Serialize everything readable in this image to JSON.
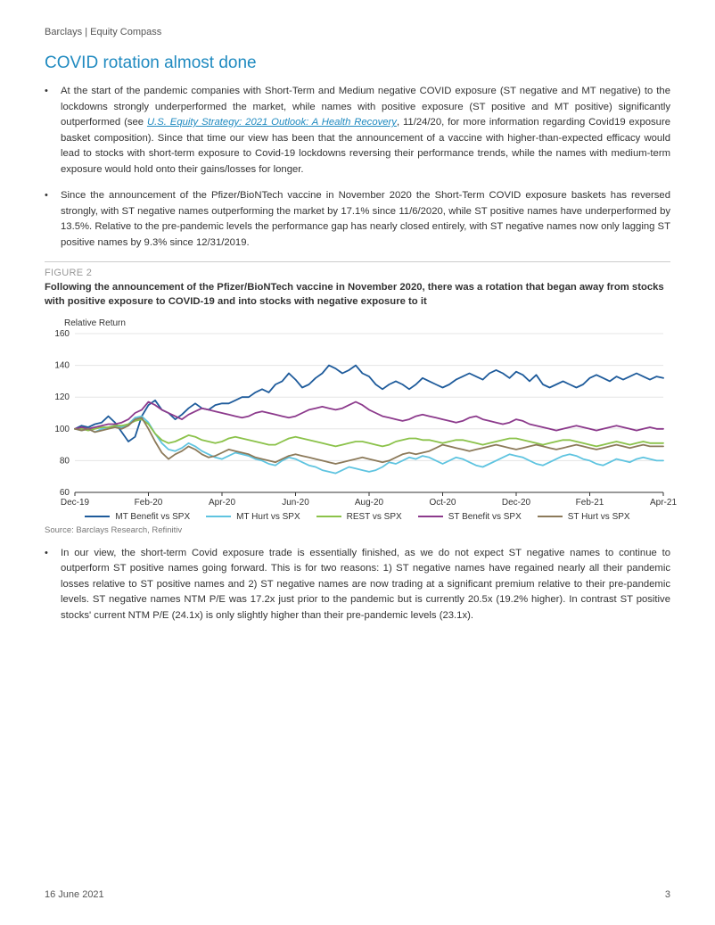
{
  "header": {
    "brand": "Barclays | Equity Compass"
  },
  "section": {
    "title": "COVID rotation almost done"
  },
  "bullets_top": [
    {
      "pre": "At the start of the pandemic companies with Short-Term and Medium negative COVID exposure (ST negative and MT negative) to the lockdowns strongly underperformed the market, while names with positive exposure (ST positive and MT positive) significantly outperformed (see ",
      "link": "U.S. Equity Strategy: 2021 Outlook: A Health Recovery",
      "post": ", 11/24/20, for more information regarding Covid19 exposure basket composition). Since that time our view has been that the announcement of a vaccine with higher-than-expected efficacy would lead to stocks with short-term exposure to Covid-19 lockdowns reversing their performance trends, while the names with medium-term exposure would hold onto their gains/losses for longer."
    },
    {
      "text": "Since the announcement of the Pfizer/BioNTech vaccine in November 2020 the Short-Term COVID exposure baskets has reversed strongly, with ST negative names outperforming the market by 17.1% since 11/6/2020, while ST positive names have underperformed by 13.5%. Relative to the pre-pandemic levels the performance gap has nearly closed entirely, with ST negative names now only lagging ST positive names by 9.3% since 12/31/2019."
    }
  ],
  "figure": {
    "label": "FIGURE 2",
    "title": "Following the announcement of the Pfizer/BioNTech vaccine in November 2020, there was a rotation that began away from stocks with positive exposure to COVID-19 and into stocks with negative exposure to it",
    "source": "Source: Barclays Research, Refinitiv"
  },
  "chart": {
    "type": "line",
    "y_axis_title": "Relative Return",
    "background_color": "#ffffff",
    "grid_color": "#e5e5e5",
    "axis_color": "#333333",
    "label_fontsize": 10,
    "ylim": [
      60,
      160
    ],
    "ytick_step": 20,
    "yticks": [
      60,
      80,
      100,
      120,
      140,
      160
    ],
    "x_categories": [
      "Dec-19",
      "Feb-20",
      "Apr-20",
      "Jun-20",
      "Aug-20",
      "Oct-20",
      "Dec-20",
      "Feb-21",
      "Apr-21"
    ],
    "line_width": 1.8,
    "series": [
      {
        "name": "MT Benefit vs SPX",
        "color": "#1e5b9b",
        "values": [
          100,
          102,
          101,
          103,
          104,
          108,
          104,
          98,
          92,
          95,
          108,
          115,
          118,
          112,
          110,
          106,
          109,
          113,
          116,
          113,
          112,
          115,
          116,
          116,
          118,
          120,
          120,
          123,
          125,
          123,
          128,
          130,
          135,
          131,
          126,
          128,
          132,
          135,
          140,
          138,
          135,
          137,
          140,
          135,
          133,
          128,
          125,
          128,
          130,
          128,
          125,
          128,
          132,
          130,
          128,
          126,
          128,
          131,
          133,
          135,
          133,
          131,
          135,
          137,
          135,
          132,
          136,
          134,
          130,
          134,
          128,
          126,
          128,
          130,
          128,
          126,
          128,
          132,
          134,
          132,
          130,
          133,
          131,
          133,
          135,
          133,
          131,
          133,
          132
        ]
      },
      {
        "name": "MT Hurt vs SPX",
        "color": "#5fc4e0",
        "values": [
          100,
          99,
          100,
          98,
          100,
          101,
          102,
          101,
          103,
          107,
          108,
          104,
          97,
          91,
          87,
          86,
          88,
          91,
          89,
          86,
          84,
          82,
          81,
          83,
          85,
          84,
          83,
          81,
          80,
          78,
          77,
          80,
          82,
          81,
          79,
          77,
          76,
          74,
          73,
          72,
          74,
          76,
          75,
          74,
          73,
          74,
          76,
          79,
          78,
          80,
          82,
          81,
          83,
          82,
          80,
          78,
          80,
          82,
          81,
          79,
          77,
          76,
          78,
          80,
          82,
          84,
          83,
          82,
          80,
          78,
          77,
          79,
          81,
          83,
          84,
          83,
          81,
          80,
          78,
          77,
          79,
          81,
          80,
          79,
          81,
          82,
          81,
          80,
          80
        ]
      },
      {
        "name": "REST vs SPX",
        "color": "#8bc24a",
        "values": [
          100,
          100,
          99,
          100,
          101,
          101,
          102,
          102,
          103,
          105,
          106,
          103,
          97,
          93,
          91,
          92,
          94,
          96,
          95,
          93,
          92,
          91,
          92,
          94,
          95,
          94,
          93,
          92,
          91,
          90,
          90,
          92,
          94,
          95,
          94,
          93,
          92,
          91,
          90,
          89,
          90,
          91,
          92,
          92,
          91,
          90,
          89,
          90,
          92,
          93,
          94,
          94,
          93,
          93,
          92,
          91,
          92,
          93,
          93,
          92,
          91,
          90,
          91,
          92,
          93,
          94,
          94,
          93,
          92,
          91,
          90,
          91,
          92,
          93,
          93,
          92,
          91,
          90,
          89,
          90,
          91,
          92,
          91,
          90,
          91,
          92,
          91,
          91,
          91
        ]
      },
      {
        "name": "ST Benefit vs SPX",
        "color": "#8c3a8c",
        "values": [
          100,
          101,
          100,
          101,
          102,
          103,
          103,
          104,
          106,
          110,
          112,
          117,
          115,
          112,
          110,
          108,
          106,
          109,
          111,
          113,
          112,
          111,
          110,
          109,
          108,
          107,
          108,
          110,
          111,
          110,
          109,
          108,
          107,
          108,
          110,
          112,
          113,
          114,
          113,
          112,
          113,
          115,
          117,
          115,
          112,
          110,
          108,
          107,
          106,
          105,
          106,
          108,
          109,
          108,
          107,
          106,
          105,
          104,
          105,
          107,
          108,
          106,
          105,
          104,
          103,
          104,
          106,
          105,
          103,
          102,
          101,
          100,
          99,
          100,
          101,
          102,
          101,
          100,
          99,
          100,
          101,
          102,
          101,
          100,
          99,
          100,
          101,
          100,
          100
        ]
      },
      {
        "name": "ST Hurt vs SPX",
        "color": "#8c7a5a",
        "values": [
          100,
          99,
          100,
          98,
          99,
          100,
          101,
          100,
          102,
          106,
          107,
          100,
          92,
          85,
          81,
          84,
          86,
          89,
          87,
          84,
          82,
          83,
          85,
          87,
          86,
          85,
          84,
          82,
          81,
          80,
          79,
          81,
          83,
          84,
          83,
          82,
          81,
          80,
          79,
          78,
          79,
          80,
          81,
          82,
          81,
          80,
          79,
          80,
          82,
          84,
          85,
          84,
          85,
          86,
          88,
          90,
          89,
          88,
          87,
          86,
          87,
          88,
          89,
          90,
          89,
          88,
          87,
          88,
          89,
          90,
          89,
          88,
          87,
          88,
          89,
          90,
          89,
          88,
          87,
          88,
          89,
          90,
          89,
          88,
          89,
          90,
          89,
          89,
          89
        ]
      }
    ]
  },
  "bullets_bottom": [
    {
      "text": "In our view, the short-term Covid exposure trade is essentially finished, as we do not expect ST negative names to continue to outperform ST positive names going forward. This is for two reasons: 1) ST negative names have regained nearly all their pandemic losses relative to ST positive names and 2) ST negative names are now trading at a significant premium relative to their pre-pandemic levels. ST negative names NTM P/E was 17.2x just prior to the pandemic but is currently 20.5x (19.2% higher). In contrast ST positive stocks' current NTM P/E (24.1x) is only slightly higher than their pre-pandemic levels (23.1x)."
    }
  ],
  "footer": {
    "date": "16 June 2021",
    "page": "3"
  }
}
